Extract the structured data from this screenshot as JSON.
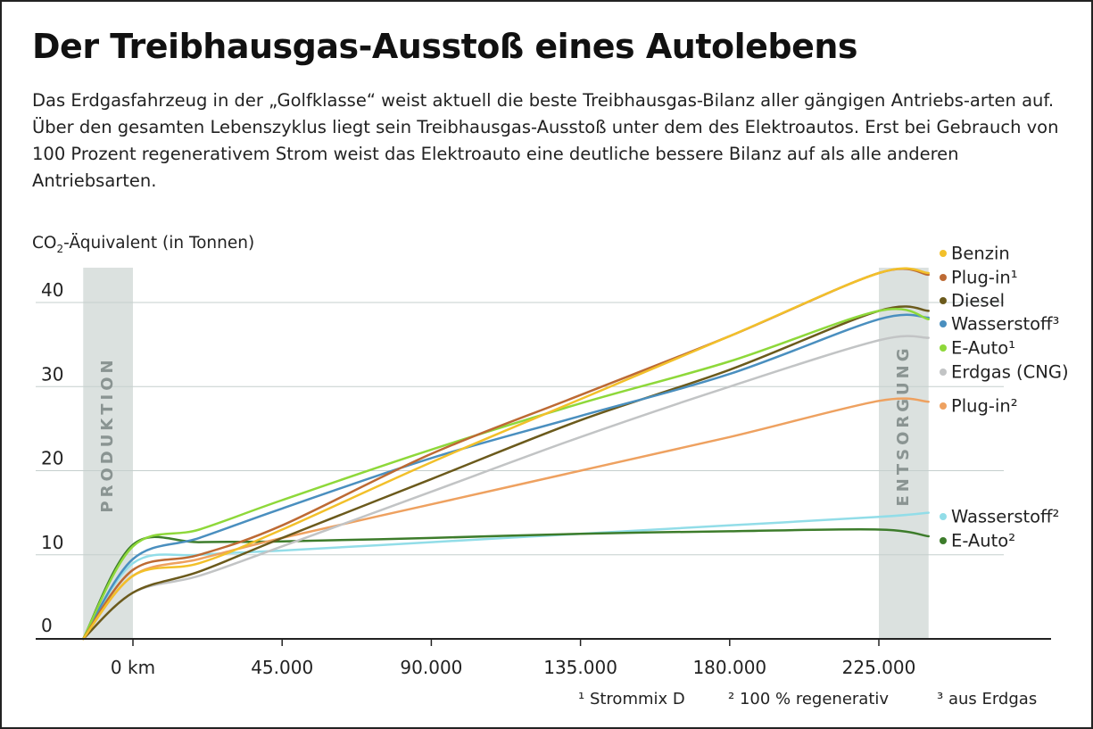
{
  "title": "Der Treibhausgas-Ausstoß eines Autolebens",
  "subtitle": "Das Erdgasfahrzeug in der „Golfklasse“ weist aktuell die beste Treibhausgas-Bilanz aller gängigen Antriebs-arten auf. Über den gesamten Lebenszyklus liegt sein Treibhausgas-Ausstoß unter dem des Elektroautos. Erst bei Gebrauch von 100 Prozent regenerativem Strom weist das Elektroauto eine deutliche bessere Bilanz auf als alle anderen Antriebsarten.",
  "footnotes": [
    "¹ Strommix D",
    "² 100 % regenerativ",
    "³ aus Erdgas"
  ],
  "chart_data": {
    "type": "line",
    "ylabel_prefix": "CO",
    "ylabel_sub": "2",
    "ylabel_suffix": "-Äquivalent (in Tonnen)",
    "ylim": [
      0,
      44
    ],
    "yticks": [
      0,
      10,
      20,
      30,
      40
    ],
    "ytick_labels": [
      "0",
      "10",
      "20",
      "30",
      "40"
    ],
    "xticks": [
      0,
      45000,
      90000,
      135000,
      180000,
      225000
    ],
    "xtick_labels": [
      "0 km",
      "45.000",
      "90.000",
      "135.000",
      "180.000",
      "225.000"
    ],
    "bands": [
      {
        "label": "PRODUKTION",
        "from": -15000,
        "to": 0
      },
      {
        "label": "ENTSORGUNG",
        "from": 225000,
        "to": 240000
      }
    ],
    "grid": true,
    "legend_position": "right",
    "series": [
      {
        "name": "Benzin",
        "color": "#f2c02a",
        "x": [
          -15000,
          0,
          20000,
          45000,
          90000,
          135000,
          180000,
          225000,
          240000
        ],
        "y": [
          0,
          7.5,
          9,
          13,
          21,
          28.5,
          36,
          43.5,
          43.5
        ]
      },
      {
        "name": "Plug-in¹",
        "color": "#bd6a34",
        "x": [
          -15000,
          0,
          20000,
          45000,
          90000,
          135000,
          180000,
          225000,
          240000
        ],
        "y": [
          0,
          8.2,
          10,
          13.5,
          22,
          29,
          36,
          43.5,
          43.3
        ]
      },
      {
        "name": "Diesel",
        "color": "#6b5a1c",
        "x": [
          -15000,
          0,
          20000,
          45000,
          90000,
          135000,
          180000,
          225000,
          240000
        ],
        "y": [
          0,
          5.5,
          8,
          12,
          19,
          26,
          32,
          39,
          39
        ]
      },
      {
        "name": "Wasserstoff³",
        "color": "#4a8fbf",
        "x": [
          -15000,
          0,
          20000,
          45000,
          90000,
          135000,
          180000,
          225000,
          240000
        ],
        "y": [
          0,
          9.5,
          12,
          15.5,
          21.5,
          26.5,
          31.5,
          38,
          38.2
        ]
      },
      {
        "name": "E-Auto¹",
        "color": "#8ed83a",
        "x": [
          -15000,
          0,
          20000,
          45000,
          90000,
          135000,
          180000,
          225000,
          240000
        ],
        "y": [
          0,
          11,
          13,
          16.5,
          22.5,
          28,
          33,
          39,
          38
        ]
      },
      {
        "name": "Erdgas (CNG)",
        "color": "#c2c4c5",
        "x": [
          -15000,
          0,
          20000,
          45000,
          90000,
          135000,
          180000,
          225000,
          240000
        ],
        "y": [
          0,
          5.5,
          7.5,
          11,
          17.5,
          24,
          30,
          35.5,
          35.8
        ]
      },
      {
        "name": "Plug-in²",
        "color": "#eea160",
        "x": [
          -15000,
          0,
          20000,
          45000,
          90000,
          135000,
          180000,
          225000,
          240000
        ],
        "y": [
          0,
          7.5,
          9.5,
          12,
          16,
          20,
          24,
          28.3,
          28.2
        ]
      },
      {
        "name": "Wasserstoff²",
        "color": "#92dde8",
        "x": [
          -15000,
          0,
          20000,
          45000,
          90000,
          135000,
          180000,
          225000,
          240000
        ],
        "y": [
          0,
          9,
          10,
          10.5,
          11.5,
          12.5,
          13.5,
          14.5,
          15
        ]
      },
      {
        "name": "E-Auto²",
        "color": "#3d7c2b",
        "x": [
          -15000,
          0,
          20000,
          45000,
          90000,
          135000,
          180000,
          225000,
          240000
        ],
        "y": [
          0,
          11.2,
          11.5,
          11.6,
          12,
          12.5,
          12.8,
          13,
          12.2
        ]
      }
    ]
  }
}
